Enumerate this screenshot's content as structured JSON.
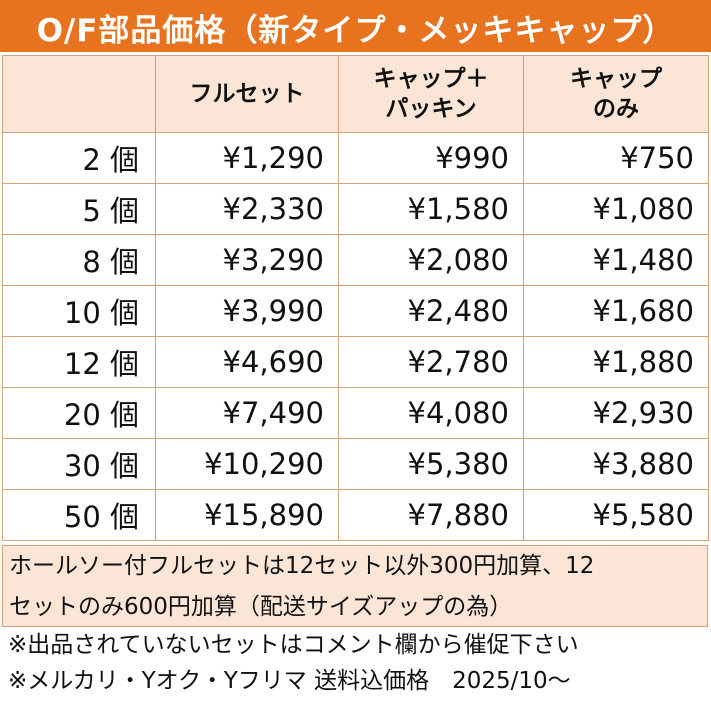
{
  "title": "O/F部品価格（新タイプ・メッキキャップ）",
  "headers": {
    "qty": "",
    "col1": "フルセット",
    "col2_line1": "キャップ＋",
    "col2_line2": "パッキン",
    "col3_line1": "キャップ",
    "col3_line2": "のみ"
  },
  "rows": [
    {
      "qty": "2 個",
      "full": "¥1,290",
      "cap_packing": "¥990",
      "cap_only": "¥750"
    },
    {
      "qty": "5 個",
      "full": "¥2,330",
      "cap_packing": "¥1,580",
      "cap_only": "¥1,080"
    },
    {
      "qty": "8 個",
      "full": "¥3,290",
      "cap_packing": "¥2,080",
      "cap_only": "¥1,480"
    },
    {
      "qty": "10 個",
      "full": "¥3,990",
      "cap_packing": "¥2,480",
      "cap_only": "¥1,680"
    },
    {
      "qty": "12 個",
      "full": "¥4,690",
      "cap_packing": "¥2,780",
      "cap_only": "¥1,880"
    },
    {
      "qty": "20 個",
      "full": "¥7,490",
      "cap_packing": "¥4,080",
      "cap_only": "¥2,930"
    },
    {
      "qty": "30 個",
      "full": "¥10,290",
      "cap_packing": "¥5,380",
      "cap_only": "¥3,880"
    },
    {
      "qty": "50 個",
      "full": "¥15,890",
      "cap_packing": "¥7,880",
      "cap_only": "¥5,580"
    }
  ],
  "notes": {
    "shaded_line1": "ホールソー付フルセットは12セット以外300円加算、12",
    "shaded_line2": "セットのみ600円加算（配送サイズアップの為）",
    "line3": "※出品されていないセットはコメント欄から催促下さい",
    "line4": "※メルカリ・Yオク・Yフリマ 送料込価格　2025/10～"
  },
  "colors": {
    "title_bg": "#E8731F",
    "header_bg": "#FBE5D6",
    "border": "#D9A07A"
  }
}
